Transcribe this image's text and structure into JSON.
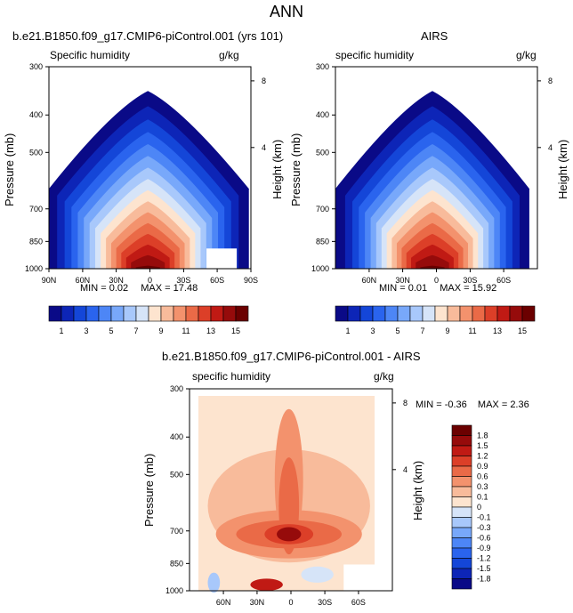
{
  "figure": {
    "title": "ANN"
  },
  "panels": {
    "model": {
      "title": "b.e21.B1850.f09_g17.CMIP6-piControl.001 (yrs 101)",
      "var_label": "Specific humidity",
      "units": "g/kg",
      "ylabel": "Pressure (mb)",
      "ylabel_right": "Height (km)",
      "stats": {
        "min_label": "MIN =",
        "min": "0.02",
        "max_label": "MAX =",
        "max": "17.48"
      }
    },
    "obs": {
      "title": "AIRS",
      "var_label": "specific humidity",
      "units": "g/kg",
      "ylabel": "Pressure (mb)",
      "ylabel_right": "Height (km)",
      "stats": {
        "min_label": "MIN =",
        "min": "0.01",
        "max_label": "MAX =",
        "max": "15.92"
      }
    },
    "diff": {
      "title": "b.e21.B1850.f09_g17.CMIP6-piControl.001 - AIRS",
      "var_label": "specific humidity",
      "units": "g/kg",
      "ylabel": "Pressure (mb)",
      "ylabel_right": "Height (km)",
      "stats": {
        "min_label": "MIN =",
        "min": "-0.36",
        "max_label": "MAX =",
        "max": "2.36"
      }
    }
  },
  "chart_data": [
    {
      "type": "heatmap",
      "name": "model",
      "title": "b.e21.B1850.f09_g17.CMIP6-piControl.001 (yrs 101)",
      "xlabel": "",
      "ylabel": "Pressure (mb)",
      "y2label": "Height (km)",
      "xlim": [
        90,
        -90
      ],
      "ylim": [
        1000,
        300
      ],
      "x_ticks": [
        "90N",
        "60N",
        "30N",
        "0",
        "30S",
        "60S",
        "90S"
      ],
      "y_ticks": [
        "300",
        "400",
        "500",
        "700",
        "850",
        "1000"
      ],
      "y2_ticks": [
        "8",
        "4"
      ],
      "max": 17.48,
      "min": 0.02,
      "levels": [
        1,
        2,
        3,
        4,
        5,
        6,
        7,
        8,
        9,
        10,
        11,
        12,
        13,
        14,
        15
      ],
      "colorbar_labels": [
        "1",
        "3",
        "5",
        "7",
        "9",
        "11",
        "13",
        "15"
      ]
    },
    {
      "type": "heatmap",
      "name": "obs",
      "title": "AIRS",
      "xlabel": "",
      "ylabel": "Pressure (mb)",
      "y2label": "Height (km)",
      "xlim": [
        90,
        -90
      ],
      "ylim": [
        1000,
        300
      ],
      "x_ticks": [
        "60N",
        "30N",
        "0",
        "30S",
        "60S"
      ],
      "y_ticks": [
        "300",
        "400",
        "500",
        "700",
        "850",
        "1000"
      ],
      "y2_ticks": [
        "8",
        "4"
      ],
      "max": 15.92,
      "min": 0.01,
      "levels": [
        1,
        2,
        3,
        4,
        5,
        6,
        7,
        8,
        9,
        10,
        11,
        12,
        13,
        14,
        15
      ],
      "colorbar_labels": [
        "1",
        "3",
        "5",
        "7",
        "9",
        "11",
        "13",
        "15"
      ]
    },
    {
      "type": "heatmap",
      "name": "diff",
      "title": "b.e21.B1850.f09_g17.CMIP6-piControl.001 - AIRS",
      "xlabel": "",
      "ylabel": "Pressure (mb)",
      "y2label": "Height (km)",
      "xlim": [
        90,
        -90
      ],
      "ylim": [
        1000,
        300
      ],
      "x_ticks": [
        "60N",
        "30N",
        "0",
        "30S",
        "60S"
      ],
      "y_ticks": [
        "300",
        "400",
        "500",
        "700",
        "850",
        "1000"
      ],
      "y2_ticks": [
        "8",
        "4"
      ],
      "max": 2.36,
      "min": -0.36,
      "levels": [
        -1.8,
        -1.5,
        -1.2,
        -0.9,
        -0.6,
        -0.3,
        -0.1,
        0,
        0.1,
        0.3,
        0.6,
        0.9,
        1.2,
        1.5,
        1.8
      ],
      "colorbar_labels": [
        "1.8",
        "1.5",
        "1.2",
        "0.9",
        "0.6",
        "0.3",
        "0.1",
        "0",
        "-0.1",
        "-0.3",
        "-0.6",
        "-0.9",
        "-1.2",
        "-1.5",
        "-1.8"
      ]
    }
  ],
  "colors": {
    "scale": [
      "#0a0a87",
      "#0d25b7",
      "#1446d8",
      "#2a64ee",
      "#4d86f6",
      "#78a8fa",
      "#a8c8fb",
      "#d6e4f8",
      "#fde4cf",
      "#f8bb9b",
      "#f3926d",
      "#ea6a47",
      "#dc3f28",
      "#c01a14",
      "#960b0b",
      "#6b0000"
    ],
    "neutral": "#fde4cf"
  }
}
